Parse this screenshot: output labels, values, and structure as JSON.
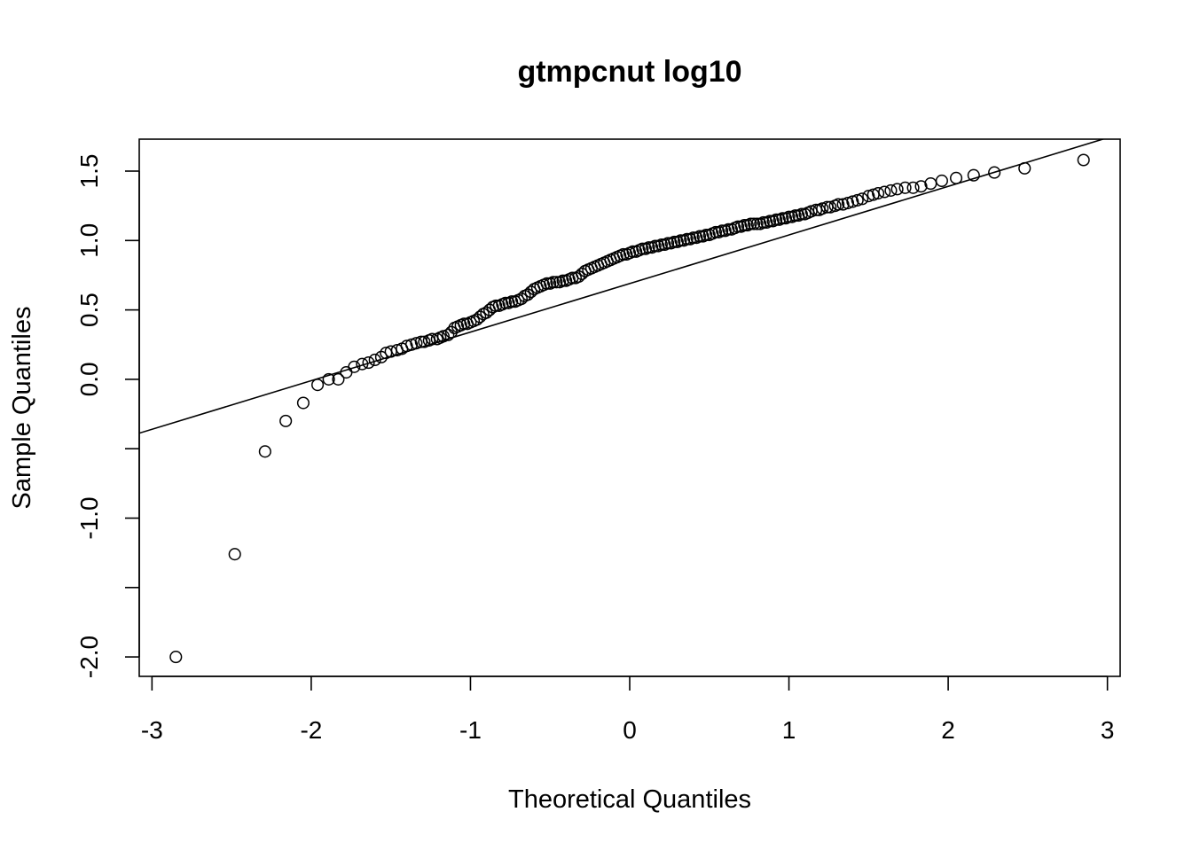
{
  "chart_data": {
    "type": "scatter",
    "title": "gtmpcnut log10",
    "xlabel": "Theoretical Quantiles",
    "ylabel": "Sample Quantiles",
    "xlim": [
      -3.08,
      3.08
    ],
    "ylim": [
      -2.14,
      1.73
    ],
    "xticks": [
      -3,
      -2,
      -1,
      0,
      1,
      2,
      3
    ],
    "xtick_labels": [
      "-3",
      "-2",
      "-1",
      "0",
      "1",
      "2",
      "3"
    ],
    "yticks": [
      -2.0,
      -1.5,
      -1.0,
      -0.5,
      0.0,
      0.5,
      1.0,
      1.5
    ],
    "ytick_labels": [
      "-2.0",
      "",
      "-1.0",
      "",
      "0.0",
      "0.5",
      "1.0",
      "1.5"
    ],
    "grid": false,
    "marker": "open-circle",
    "reference_line": {
      "slope": 0.35,
      "intercept": 0.69
    },
    "points": {
      "x": [
        -2.85,
        -2.48,
        -2.29,
        -2.16,
        -2.05,
        -1.96,
        -1.89,
        -1.83,
        -1.78,
        -1.73,
        -1.68,
        -1.64,
        -1.6,
        -1.56,
        -1.53,
        -1.5,
        -1.46,
        -1.43,
        -1.4,
        -1.37,
        -1.34,
        -1.31,
        -1.29,
        -1.26,
        -1.24,
        -1.21,
        -1.19,
        -1.17,
        -1.14,
        -1.12,
        -1.1,
        -1.08,
        -1.06,
        -1.04,
        -1.02,
        -1.0,
        -0.98,
        -0.96,
        -0.94,
        -0.92,
        -0.9,
        -0.88,
        -0.86,
        -0.84,
        -0.82,
        -0.8,
        -0.78,
        -0.76,
        -0.74,
        -0.72,
        -0.7,
        -0.68,
        -0.66,
        -0.64,
        -0.62,
        -0.6,
        -0.58,
        -0.56,
        -0.54,
        -0.52,
        -0.5,
        -0.48,
        -0.46,
        -0.44,
        -0.42,
        -0.4,
        -0.38,
        -0.36,
        -0.34,
        -0.32,
        -0.3,
        -0.28,
        -0.26,
        -0.24,
        -0.22,
        -0.2,
        -0.18,
        -0.16,
        -0.14,
        -0.12,
        -0.1,
        -0.08,
        -0.06,
        -0.04,
        -0.02,
        0.0,
        0.02,
        0.04,
        0.06,
        0.08,
        0.1,
        0.12,
        0.14,
        0.16,
        0.18,
        0.2,
        0.22,
        0.24,
        0.26,
        0.28,
        0.3,
        0.32,
        0.34,
        0.36,
        0.38,
        0.4,
        0.42,
        0.44,
        0.46,
        0.48,
        0.5,
        0.52,
        0.54,
        0.56,
        0.58,
        0.6,
        0.62,
        0.64,
        0.66,
        0.68,
        0.7,
        0.72,
        0.74,
        0.76,
        0.78,
        0.8,
        0.82,
        0.84,
        0.86,
        0.88,
        0.9,
        0.92,
        0.94,
        0.96,
        0.98,
        1.0,
        1.02,
        1.04,
        1.06,
        1.08,
        1.1,
        1.12,
        1.14,
        1.17,
        1.19,
        1.21,
        1.24,
        1.26,
        1.29,
        1.31,
        1.34,
        1.37,
        1.4,
        1.43,
        1.46,
        1.5,
        1.53,
        1.56,
        1.6,
        1.64,
        1.68,
        1.73,
        1.78,
        1.83,
        1.89,
        1.96,
        2.05,
        2.16,
        2.29,
        2.48,
        2.85
      ],
      "y": [
        -2.0,
        -1.26,
        -0.52,
        -0.3,
        -0.17,
        -0.04,
        0.0,
        0.0,
        0.05,
        0.09,
        0.11,
        0.12,
        0.14,
        0.16,
        0.19,
        0.2,
        0.21,
        0.22,
        0.24,
        0.25,
        0.26,
        0.27,
        0.27,
        0.28,
        0.29,
        0.29,
        0.3,
        0.31,
        0.32,
        0.34,
        0.37,
        0.38,
        0.39,
        0.4,
        0.4,
        0.41,
        0.42,
        0.43,
        0.45,
        0.47,
        0.48,
        0.5,
        0.52,
        0.53,
        0.53,
        0.54,
        0.55,
        0.55,
        0.56,
        0.56,
        0.57,
        0.58,
        0.6,
        0.61,
        0.63,
        0.65,
        0.66,
        0.67,
        0.68,
        0.69,
        0.69,
        0.7,
        0.7,
        0.7,
        0.71,
        0.71,
        0.72,
        0.73,
        0.73,
        0.74,
        0.76,
        0.78,
        0.79,
        0.8,
        0.81,
        0.82,
        0.83,
        0.84,
        0.85,
        0.86,
        0.87,
        0.88,
        0.89,
        0.9,
        0.9,
        0.91,
        0.92,
        0.92,
        0.93,
        0.94,
        0.94,
        0.95,
        0.95,
        0.96,
        0.96,
        0.97,
        0.97,
        0.98,
        0.98,
        0.99,
        0.99,
        1.0,
        1.0,
        1.01,
        1.01,
        1.02,
        1.02,
        1.03,
        1.03,
        1.04,
        1.04,
        1.05,
        1.06,
        1.06,
        1.07,
        1.07,
        1.08,
        1.08,
        1.09,
        1.1,
        1.1,
        1.11,
        1.11,
        1.12,
        1.12,
        1.12,
        1.12,
        1.13,
        1.13,
        1.14,
        1.14,
        1.15,
        1.15,
        1.16,
        1.16,
        1.17,
        1.17,
        1.18,
        1.18,
        1.19,
        1.19,
        1.2,
        1.21,
        1.22,
        1.22,
        1.23,
        1.24,
        1.24,
        1.25,
        1.26,
        1.26,
        1.27,
        1.28,
        1.29,
        1.3,
        1.32,
        1.33,
        1.34,
        1.35,
        1.36,
        1.37,
        1.38,
        1.38,
        1.39,
        1.41,
        1.43,
        1.45,
        1.47,
        1.49,
        1.52,
        1.58
      ]
    }
  }
}
